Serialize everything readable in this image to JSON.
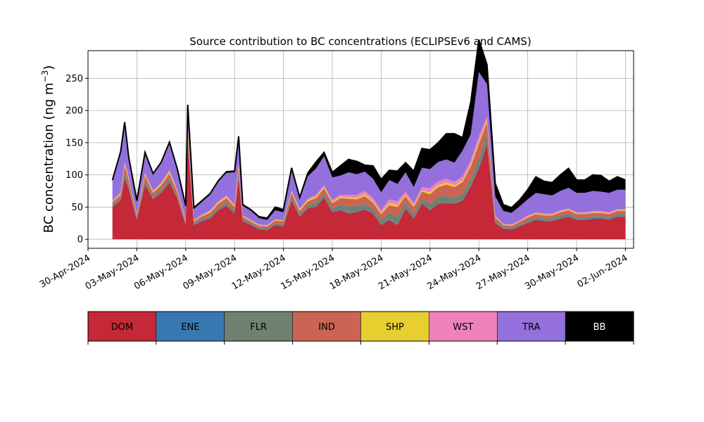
{
  "chart_data": {
    "type": "area",
    "stacked": true,
    "title": "Source contribution to BC concentrations (ECLIPSEv6 and CAMS)",
    "ylabel": "BC concentration (ng m⁻³)",
    "ylabel_main": "BC concentration (ng m",
    "ylabel_sup": "−3",
    "ylabel_close": ")",
    "ylim": [
      -14,
      293
    ],
    "yticks": [
      0,
      50,
      100,
      150,
      200,
      250
    ],
    "xlim": [
      "2024-04-30T00:00",
      "2024-06-02T12:00"
    ],
    "xticks": [
      "2024-04-30",
      "2024-05-03",
      "2024-05-06",
      "2024-05-09",
      "2024-05-12",
      "2024-05-15",
      "2024-05-18",
      "2024-05-21",
      "2024-05-24",
      "2024-05-27",
      "2024-05-30",
      "2024-06-02"
    ],
    "xtick_labels": [
      "30-Apr-2024",
      "03-May-2024",
      "06-May-2024",
      "09-May-2024",
      "12-May-2024",
      "15-May-2024",
      "18-May-2024",
      "21-May-2024",
      "24-May-2024",
      "27-May-2024",
      "30-May-2024",
      "02-Jun-2024"
    ],
    "grid": true,
    "series_order": [
      "DOM",
      "ENE",
      "FLR",
      "IND",
      "SHP",
      "WST",
      "TRA",
      "BB"
    ],
    "colors": {
      "DOM": "#c52836",
      "ENE": "#3878b0",
      "FLR": "#6f8272",
      "IND": "#cb6452",
      "SHP": "#e6cf2e",
      "WST": "#ef82bb",
      "TRA": "#9370db",
      "BB": "#000000"
    },
    "legend": {
      "placement": "below",
      "entries": [
        {
          "label": "DOM",
          "color": "#c52836",
          "text_color": "#000000"
        },
        {
          "label": "ENE",
          "color": "#3878b0",
          "text_color": "#000000"
        },
        {
          "label": "FLR",
          "color": "#6f8272",
          "text_color": "#000000"
        },
        {
          "label": "IND",
          "color": "#cb6452",
          "text_color": "#000000"
        },
        {
          "label": "SHP",
          "color": "#e6cf2e",
          "text_color": "#000000"
        },
        {
          "label": "WST",
          "color": "#ef82bb",
          "text_color": "#000000"
        },
        {
          "label": "TRA",
          "color": "#9370db",
          "text_color": "#000000"
        },
        {
          "label": "BB",
          "color": "#000000",
          "text_color": "#ffffff"
        }
      ]
    },
    "x": [
      "2024-05-01T12:00",
      "2024-05-02T00:00",
      "2024-05-02T06:00",
      "2024-05-02T12:00",
      "2024-05-03T00:00",
      "2024-05-03T12:00",
      "2024-05-04T00:00",
      "2024-05-04T12:00",
      "2024-05-05T00:00",
      "2024-05-05T12:00",
      "2024-05-06T00:00",
      "2024-05-06T03:00",
      "2024-05-06T12:00",
      "2024-05-07T00:00",
      "2024-05-07T12:00",
      "2024-05-08T00:00",
      "2024-05-08T12:00",
      "2024-05-09T00:00",
      "2024-05-09T06:00",
      "2024-05-09T12:00",
      "2024-05-10T00:00",
      "2024-05-10T12:00",
      "2024-05-11T00:00",
      "2024-05-11T12:00",
      "2024-05-12T00:00",
      "2024-05-12T12:00",
      "2024-05-13T00:00",
      "2024-05-13T12:00",
      "2024-05-14T00:00",
      "2024-05-14T12:00",
      "2024-05-15T00:00",
      "2024-05-15T12:00",
      "2024-05-16T00:00",
      "2024-05-16T12:00",
      "2024-05-17T00:00",
      "2024-05-17T12:00",
      "2024-05-18T00:00",
      "2024-05-18T12:00",
      "2024-05-19T00:00",
      "2024-05-19T12:00",
      "2024-05-20T00:00",
      "2024-05-20T12:00",
      "2024-05-21T00:00",
      "2024-05-21T12:00",
      "2024-05-22T00:00",
      "2024-05-22T12:00",
      "2024-05-23T00:00",
      "2024-05-23T12:00",
      "2024-05-24T00:00",
      "2024-05-24T12:00",
      "2024-05-25T00:00",
      "2024-05-25T12:00",
      "2024-05-26T00:00",
      "2024-05-26T12:00",
      "2024-05-27T00:00",
      "2024-05-27T12:00",
      "2024-05-28T00:00",
      "2024-05-28T12:00",
      "2024-05-29T00:00",
      "2024-05-29T12:00",
      "2024-05-30T00:00",
      "2024-05-30T12:00",
      "2024-05-31T00:00",
      "2024-05-31T12:00",
      "2024-06-01T00:00",
      "2024-06-01T12:00",
      "2024-06-02T00:00"
    ],
    "series": [
      {
        "name": "DOM",
        "values": [
          50,
          60,
          95,
          78,
          30,
          85,
          62,
          72,
          88,
          62,
          22,
          150,
          22,
          28,
          32,
          45,
          52,
          40,
          95,
          28,
          22,
          15,
          14,
          22,
          20,
          60,
          35,
          48,
          50,
          65,
          42,
          45,
          40,
          42,
          46,
          40,
          22,
          30,
          22,
          48,
          32,
          55,
          45,
          55,
          56,
          55,
          60,
          82,
          110,
          148,
          25,
          16,
          15,
          20,
          25,
          30,
          28,
          28,
          32,
          35,
          30,
          30,
          32,
          32,
          30,
          35,
          35
        ]
      },
      {
        "name": "ENE",
        "values": [
          1,
          1,
          2,
          2,
          1,
          2,
          1,
          1,
          2,
          1,
          1,
          2,
          1,
          1,
          1,
          1,
          1,
          1,
          2,
          1,
          1,
          1,
          1,
          1,
          1,
          1,
          1,
          1,
          1,
          1,
          1,
          1,
          1,
          1,
          1,
          1,
          1,
          1,
          1,
          1,
          1,
          1,
          1,
          1,
          1,
          1,
          1,
          1,
          2,
          2,
          1,
          1,
          1,
          1,
          1,
          1,
          1,
          1,
          1,
          1,
          1,
          1,
          1,
          1,
          1,
          1,
          1
        ]
      },
      {
        "name": "FLR",
        "values": [
          3,
          3,
          5,
          4,
          2,
          4,
          3,
          4,
          4,
          3,
          2,
          6,
          2,
          3,
          3,
          3,
          4,
          3,
          5,
          2,
          2,
          2,
          2,
          2,
          3,
          4,
          3,
          4,
          6,
          5,
          5,
          8,
          10,
          9,
          8,
          6,
          7,
          10,
          12,
          8,
          7,
          6,
          9,
          10,
          10,
          9,
          10,
          10,
          14,
          12,
          3,
          2,
          2,
          2,
          3,
          3,
          3,
          3,
          4,
          4,
          3,
          3,
          3,
          3,
          3,
          3,
          3
        ]
      },
      {
        "name": "IND",
        "values": [
          4,
          5,
          12,
          8,
          4,
          8,
          6,
          7,
          8,
          6,
          3,
          12,
          3,
          4,
          5,
          6,
          7,
          6,
          10,
          4,
          3,
          3,
          3,
          4,
          4,
          7,
          5,
          6,
          7,
          8,
          8,
          10,
          12,
          10,
          12,
          10,
          9,
          12,
          15,
          10,
          10,
          12,
          15,
          15,
          18,
          16,
          18,
          20,
          22,
          20,
          5,
          3,
          3,
          4,
          5,
          5,
          5,
          5,
          5,
          5,
          5,
          5,
          5,
          5,
          5,
          5,
          5
        ]
      },
      {
        "name": "SHP",
        "values": [
          1,
          2,
          3,
          2,
          1,
          2,
          2,
          2,
          3,
          2,
          1,
          4,
          1,
          1,
          2,
          2,
          2,
          2,
          3,
          1,
          1,
          1,
          1,
          1,
          1,
          2,
          2,
          2,
          2,
          2,
          2,
          2,
          2,
          2,
          3,
          2,
          2,
          3,
          3,
          2,
          2,
          2,
          3,
          3,
          3,
          3,
          3,
          3,
          4,
          3,
          1,
          1,
          1,
          1,
          1,
          1,
          1,
          1,
          1,
          1,
          1,
          1,
          1,
          1,
          1,
          1,
          1
        ]
      },
      {
        "name": "WST",
        "values": [
          1,
          2,
          3,
          2,
          1,
          2,
          2,
          2,
          3,
          2,
          1,
          3,
          1,
          1,
          2,
          2,
          2,
          2,
          3,
          1,
          1,
          1,
          1,
          1,
          1,
          2,
          2,
          2,
          3,
          3,
          3,
          3,
          4,
          5,
          5,
          5,
          4,
          6,
          6,
          5,
          4,
          5,
          6,
          6,
          6,
          5,
          6,
          7,
          8,
          6,
          2,
          1,
          1,
          1,
          2,
          2,
          2,
          2,
          2,
          2,
          2,
          2,
          2,
          2,
          2,
          2,
          2
        ]
      },
      {
        "name": "TRA",
        "values": [
          30,
          60,
          60,
          30,
          20,
          30,
          25,
          30,
          40,
          30,
          20,
          30,
          17,
          20,
          24,
          30,
          35,
          50,
          40,
          15,
          14,
          10,
          8,
          14,
          12,
          30,
          14,
          35,
          41,
          45,
          35,
          30,
          35,
          32,
          30,
          30,
          28,
          30,
          27,
          30,
          25,
          30,
          30,
          30,
          30,
          30,
          40,
          40,
          100,
          50,
          30,
          20,
          18,
          22,
          25,
          30,
          30,
          28,
          30,
          32,
          30,
          30,
          31,
          30,
          30,
          30,
          30
        ]
      },
      {
        "name": "BB",
        "values": [
          2,
          3,
          2,
          2,
          1,
          2,
          1,
          2,
          3,
          2,
          2,
          2,
          2,
          2,
          2,
          2,
          2,
          2,
          2,
          2,
          2,
          2,
          3,
          5,
          4,
          5,
          3,
          5,
          10,
          6,
          8,
          15,
          20,
          20,
          10,
          20,
          20,
          15,
          20,
          15,
          25,
          30,
          30,
          30,
          40,
          45,
          20,
          50,
          50,
          30,
          20,
          10,
          8,
          10,
          15,
          25,
          20,
          20,
          25,
          30,
          20,
          20,
          25,
          25,
          18,
          20,
          15
        ]
      }
    ]
  }
}
